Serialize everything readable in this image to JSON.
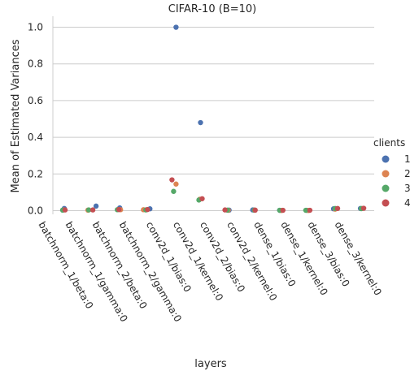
{
  "chart_data": {
    "type": "scatter",
    "title": "CIFAR-10 (B=10)",
    "xlabel": "layers",
    "ylabel": "Mean of Estimated Variances",
    "categories": [
      "batchnorm_1/beta:0",
      "batchnorm_1/gamma:0",
      "batchnorm_2/beta:0",
      "batchnorm_2/gamma:0",
      "conv2d_1/bias:0",
      "conv2d_1/kernel:0",
      "conv2d_2/bias:0",
      "conv2d_2/kernel:0",
      "dense_1/bias:0",
      "dense_1/kernel:0",
      "dense_3/bias:0",
      "dense_3/kernel:0"
    ],
    "ylim": [
      -0.02,
      1.06
    ],
    "yticks": [
      "0.0",
      "0.2",
      "0.4",
      "0.6",
      "0.8",
      "1.0"
    ],
    "grid": true,
    "legend": {
      "title": "clients",
      "placement": "right"
    },
    "series": [
      {
        "name": "1",
        "color": "#4c72b0",
        "values": [
          0.012,
          0.025,
          0.015,
          0.01,
          1.0,
          0.48,
          0.003,
          0.004,
          0.002,
          0.002,
          0.01,
          0.012
        ]
      },
      {
        "name": "2",
        "color": "#dd8452",
        "values": [
          0.004,
          0.003,
          0.005,
          0.005,
          0.145,
          0.062,
          0.002,
          0.003,
          0.001,
          0.001,
          0.008,
          0.012
        ]
      },
      {
        "name": "3",
        "color": "#55a868",
        "values": [
          0.003,
          0.004,
          0.005,
          0.004,
          0.105,
          0.058,
          0.003,
          0.003,
          0.002,
          0.002,
          0.012,
          0.011
        ]
      },
      {
        "name": "4",
        "color": "#c44e52",
        "values": [
          0.004,
          0.004,
          0.006,
          0.006,
          0.168,
          0.065,
          0.004,
          0.003,
          0.002,
          0.002,
          0.012,
          0.013
        ]
      }
    ]
  }
}
